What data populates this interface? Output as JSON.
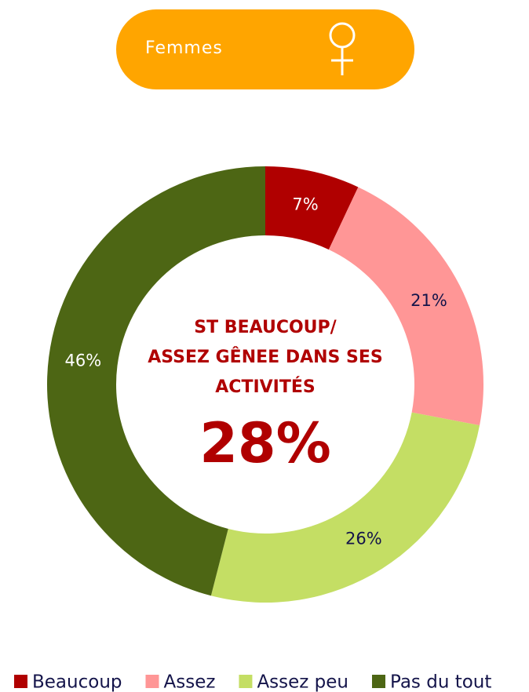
{
  "header": {
    "label": "Femmes"
  },
  "chart_data": {
    "type": "donut",
    "categories": [
      "Beaucoup",
      "Assez",
      "Assez peu",
      "Pas du tout"
    ],
    "values": [
      7,
      21,
      26,
      46
    ],
    "value_labels": [
      "7%",
      "21%",
      "26%",
      "46%"
    ],
    "colors": [
      "#b00000",
      "#ff9696",
      "#c4de64",
      "#4d6614"
    ],
    "center_title": [
      "ST BEAUCOUP/",
      "ASSEZ GÊNEE DANS SES",
      "ACTIVITÉS"
    ],
    "center_value": 28,
    "center_value_label": "28%",
    "legend": "bottom"
  }
}
